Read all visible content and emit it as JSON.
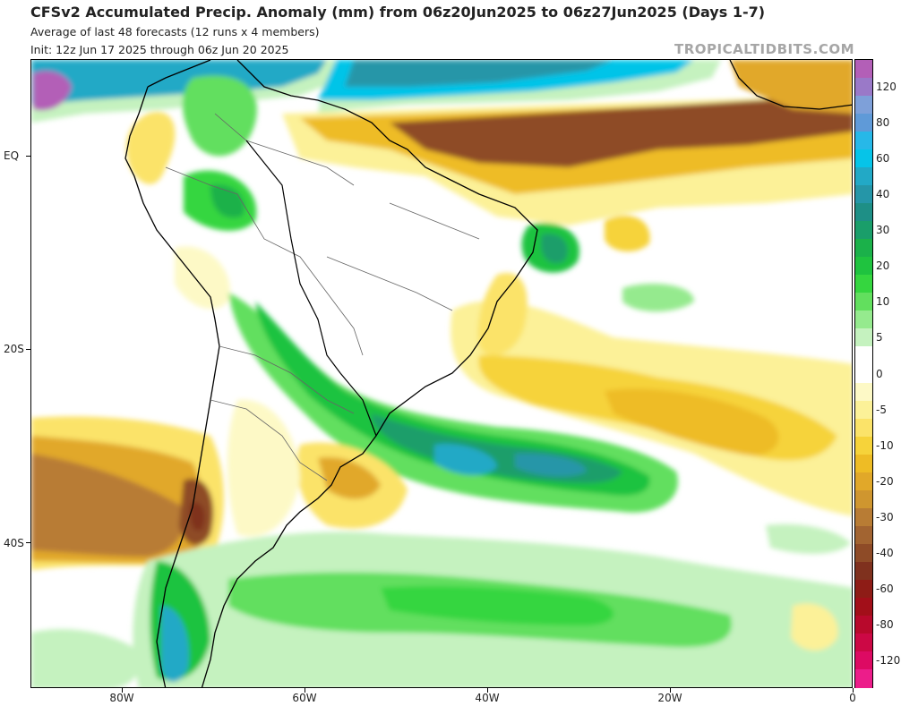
{
  "header": {
    "title": "CFSv2 Accumulated Precip. Anomaly (mm) from 06z20Jun2025 to 06z27Jun2025 (Days 1-7)",
    "subtitle": "Average of last 48 forecasts (12 runs x 4 members)",
    "init": "Init: 12z Jun 17 2025 through 06z Jun 20 2025",
    "credit": "TROPICALTIDBITS.COM"
  },
  "axes": {
    "x_ticks": [
      {
        "label": "80W",
        "lon": -80
      },
      {
        "label": "60W",
        "lon": -60
      },
      {
        "label": "40W",
        "lon": -40
      },
      {
        "label": "20W",
        "lon": -20
      },
      {
        "label": "0",
        "lon": 0
      }
    ],
    "y_ticks": [
      {
        "label": "EQ",
        "lat": 0
      },
      {
        "label": "20S",
        "lat": -20
      },
      {
        "label": "40S",
        "lat": -40
      }
    ],
    "lon_range": [
      -90,
      0
    ],
    "lat_range": [
      -55,
      10
    ]
  },
  "legend": {
    "levels": [
      {
        "label": "",
        "color": "#b35fb7"
      },
      {
        "label": "120",
        "color": "#9a79c8"
      },
      {
        "label": "",
        "color": "#7ea0d9"
      },
      {
        "label": "80",
        "color": "#5f9ad8"
      },
      {
        "label": "",
        "color": "#27b8e8"
      },
      {
        "label": "60",
        "color": "#06c4e8"
      },
      {
        "label": "",
        "color": "#22a9c6"
      },
      {
        "label": "40",
        "color": "#2596a8"
      },
      {
        "label": "",
        "color": "#1e8f86"
      },
      {
        "label": "30",
        "color": "#1a9e6a"
      },
      {
        "label": "",
        "color": "#1bb14a"
      },
      {
        "label": "20",
        "color": "#1fc33f"
      },
      {
        "label": "",
        "color": "#35d63f"
      },
      {
        "label": "10",
        "color": "#62df5e"
      },
      {
        "label": "",
        "color": "#95ea8e"
      },
      {
        "label": "5",
        "color": "#c5f2bf"
      },
      {
        "label": "",
        "color": "#ffffff"
      },
      {
        "label": "0",
        "color": "#ffffff"
      },
      {
        "label": "",
        "color": "#fdf9c6"
      },
      {
        "label": "-5",
        "color": "#fcf198"
      },
      {
        "label": "",
        "color": "#fbe369"
      },
      {
        "label": "-10",
        "color": "#f6d33a"
      },
      {
        "label": "",
        "color": "#eebc25"
      },
      {
        "label": "-20",
        "color": "#e1a829"
      },
      {
        "label": "",
        "color": "#cf962f"
      },
      {
        "label": "-30",
        "color": "#b87c34"
      },
      {
        "label": "",
        "color": "#a26431"
      },
      {
        "label": "-40",
        "color": "#8e4b27"
      },
      {
        "label": "",
        "color": "#7f311e"
      },
      {
        "label": "-60",
        "color": "#8e1c16"
      },
      {
        "label": "",
        "color": "#a20f19"
      },
      {
        "label": "-80",
        "color": "#b8092c"
      },
      {
        "label": "",
        "color": "#cc0845"
      },
      {
        "label": "-120",
        "color": "#dd0a63"
      },
      {
        "label": "",
        "color": "#ec1d8a"
      }
    ]
  }
}
